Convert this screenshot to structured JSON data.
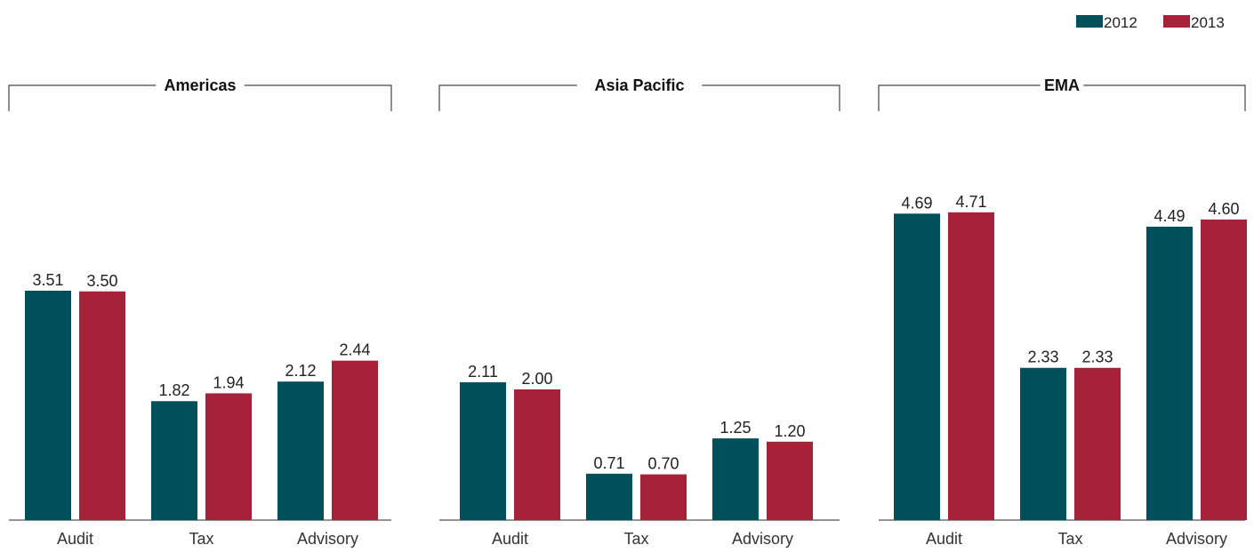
{
  "colors": {
    "series_2012": "#00505c",
    "series_2013": "#a52238",
    "axis": "#555555",
    "bracket": "#444444"
  },
  "legend": [
    {
      "label": "2012",
      "color": "#00505c"
    },
    {
      "label": "2013",
      "color": "#a52238"
    }
  ],
  "chart_data": [
    {
      "type": "bar",
      "title": "Americas",
      "categories": [
        "Audit",
        "Tax",
        "Advisory"
      ],
      "series": [
        {
          "name": "2012",
          "values": [
            3.51,
            1.82,
            2.12
          ],
          "labels": [
            "3.51",
            "1.82",
            "2.12"
          ]
        },
        {
          "name": "2013",
          "values": [
            3.5,
            1.94,
            2.44
          ],
          "labels": [
            "3.50",
            "1.94",
            "2.44"
          ]
        }
      ],
      "ylim": [
        0,
        5
      ],
      "grid": false,
      "legend_position": "top-right"
    },
    {
      "type": "bar",
      "title": "Asia Pacific",
      "categories": [
        "Audit",
        "Tax",
        "Advisory"
      ],
      "series": [
        {
          "name": "2012",
          "values": [
            2.11,
            0.71,
            1.25
          ],
          "labels": [
            "2.11",
            "0.71",
            "1.25"
          ]
        },
        {
          "name": "2013",
          "values": [
            2.0,
            0.7,
            1.2
          ],
          "labels": [
            "2.00",
            "0.70",
            "1.20"
          ]
        }
      ],
      "ylim": [
        0,
        5
      ],
      "grid": false,
      "legend_position": "top-right"
    },
    {
      "type": "bar",
      "title": "EMA",
      "categories": [
        "Audit",
        "Tax",
        "Advisory"
      ],
      "series": [
        {
          "name": "2012",
          "values": [
            4.69,
            2.33,
            4.49
          ],
          "labels": [
            "4.69",
            "2.33",
            "4.49"
          ]
        },
        {
          "name": "2013",
          "values": [
            4.71,
            2.33,
            4.6
          ],
          "labels": [
            "4.71",
            "2.33",
            "4.60"
          ]
        }
      ],
      "ylim": [
        0,
        5
      ],
      "grid": false,
      "legend_position": "top-right"
    }
  ]
}
